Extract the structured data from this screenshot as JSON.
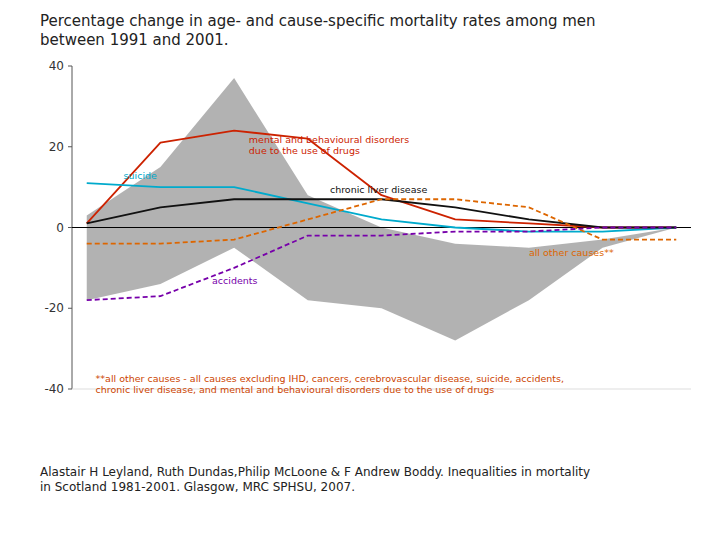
{
  "chart_data": {
    "type": "line",
    "title": "Percentage change in age- and cause-specific mortality rates among men\nbetween 1991 and 2001.",
    "x": [
      0,
      1,
      2,
      3,
      4,
      5,
      6,
      7,
      8
    ],
    "xlim": [
      -0.2,
      8.2
    ],
    "xticks": [],
    "ylim": [
      -40,
      40
    ],
    "yticks": [
      -40,
      -20,
      0,
      20,
      40
    ],
    "grid": false,
    "tick_labels": "y",
    "series": [
      {
        "type": "band",
        "color": "#aaaaaa",
        "lower": [
          -18,
          -14,
          -5,
          -18,
          -20,
          -28,
          -18,
          -5,
          0
        ],
        "upper": [
          3,
          15,
          37,
          8,
          0,
          -4,
          -5,
          -3,
          0
        ]
      },
      {
        "type": "line",
        "color": "#cc2200",
        "line_style": "solid",
        "values": [
          1,
          21,
          24,
          22,
          8,
          2,
          1,
          0,
          0
        ]
      },
      {
        "type": "line",
        "color": "#00aacc",
        "line_style": "solid",
        "values": [
          11,
          10,
          10,
          6,
          2,
          0,
          -1,
          -1,
          0
        ]
      },
      {
        "type": "line",
        "color": "#111111",
        "line_style": "solid",
        "values": [
          1,
          5,
          7,
          7,
          7,
          5,
          2,
          0,
          0
        ]
      },
      {
        "type": "line",
        "color": "#dd6600",
        "line_style": "dashed",
        "values": [
          -4,
          -4,
          -3,
          2,
          7,
          7,
          5,
          -3,
          -3
        ]
      },
      {
        "type": "line",
        "color": "#7700aa",
        "line_style": "dashed",
        "values": [
          -18,
          -17,
          -10,
          -2,
          -2,
          -1,
          -1,
          0,
          0
        ]
      }
    ],
    "reference_lines": [
      {
        "y": 0,
        "color": "#000000"
      }
    ],
    "annotations": [
      {
        "text": "mental and behavioural disorders\ndue to the use of drugs",
        "x": 2.2,
        "y": 21,
        "color": "#cc2200"
      },
      {
        "text": "suicide",
        "x": 0.5,
        "y": 12,
        "color": "#00aacc"
      },
      {
        "text": "chronic liver disease",
        "x": 3.3,
        "y": 8.5,
        "color": "#111111"
      },
      {
        "text": "all other causes**",
        "x": 6.0,
        "y": -7,
        "color": "#dd6600"
      },
      {
        "text": "accidents",
        "x": 1.7,
        "y": -14,
        "color": "#7700aa"
      }
    ],
    "footnote": {
      "text": "**all other causes - all causes excluding IHD, cancers, cerebrovascular disease, suicide, accidents,\nchronic liver disease, and mental and behavioural disorders due to the use of drugs",
      "x": 0.12,
      "y": -36,
      "color": "#cc4400"
    },
    "source": "Alastair H Leyland, Ruth Dundas,Philip McLoone & F Andrew Boddy. Inequalities in mortality\nin Scotland 1981-2001. Glasgow, MRC SPHSU, 2007."
  }
}
